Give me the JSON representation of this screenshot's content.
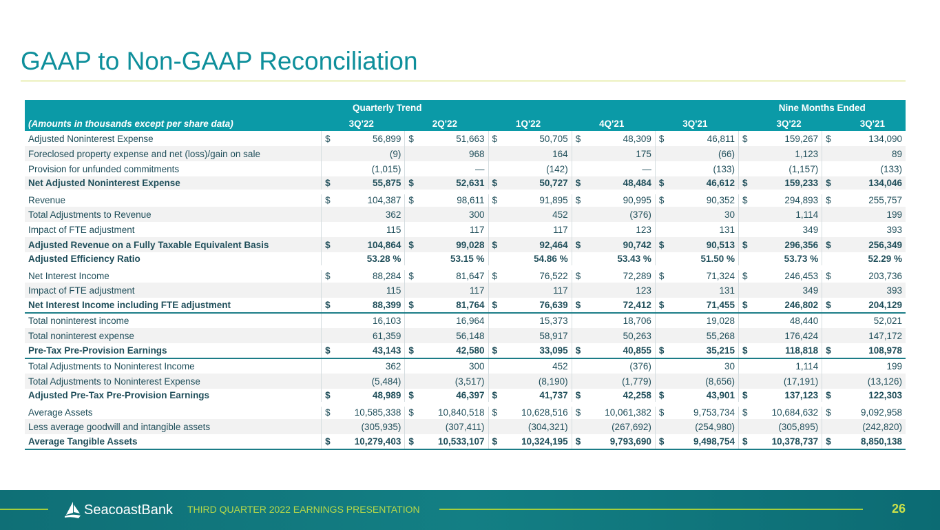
{
  "title": "GAAP to Non-GAAP Reconciliation",
  "table": {
    "group_quarterly": "Quarterly Trend",
    "group_nine": "Nine  Months Ended",
    "units_note": "(Amounts in thousands except per share data)",
    "columns": [
      "3Q'22",
      "2Q'22",
      "1Q'22",
      "4Q'21",
      "3Q'21",
      "3Q'22",
      "3Q'21"
    ],
    "rows": [
      {
        "label": "Adjusted Noninterest Expense",
        "dollar": true,
        "values": [
          "56,899",
          "51,663",
          "50,705",
          "48,309",
          "46,811",
          "159,267",
          "134,090"
        ]
      },
      {
        "label": "Foreclosed property expense and net (loss)/gain on sale",
        "shade": true,
        "values": [
          "(9)",
          "968",
          "164",
          "175",
          "(66)",
          "1,123",
          "89"
        ]
      },
      {
        "label": "Provision for unfunded commitments",
        "values": [
          "(1,015)",
          "—",
          "(142)",
          "—",
          "(133)",
          "(1,157)",
          "(133)"
        ]
      },
      {
        "label": "Net Adjusted Noninterest Expense",
        "bold": true,
        "shade": true,
        "bb": true,
        "dollar": true,
        "values": [
          "55,875",
          "52,631",
          "50,727",
          "48,484",
          "46,612",
          "159,233",
          "134,046"
        ]
      },
      {
        "label": "Revenue",
        "gap": true,
        "dollar": true,
        "values": [
          "104,387",
          "98,611",
          "91,895",
          "90,995",
          "90,352",
          "294,893",
          "255,757"
        ]
      },
      {
        "label": "Total Adjustments to Revenue",
        "shade": true,
        "values": [
          "362",
          "300",
          "452",
          "(376)",
          "30",
          "1,114",
          "199"
        ]
      },
      {
        "label": "Impact of FTE adjustment",
        "values": [
          "115",
          "117",
          "117",
          "123",
          "131",
          "349",
          "393"
        ]
      },
      {
        "label": "Adjusted Revenue on a Fully Taxable Equivalent Basis",
        "bold": true,
        "shade": true,
        "dollar": true,
        "values": [
          "104,864",
          "99,028",
          "92,464",
          "90,742",
          "90,513",
          "296,356",
          "256,349"
        ]
      },
      {
        "label": "Adjusted Efficiency Ratio",
        "bold": true,
        "bb": true,
        "values": [
          "53.28 %",
          "53.15 %",
          "54.86 %",
          "53.43 %",
          "51.50 %",
          "53.73 %",
          "52.29 %"
        ]
      },
      {
        "label": "Net Interest Income",
        "gap": true,
        "dollar": true,
        "values": [
          "88,284",
          "81,647",
          "76,522",
          "72,289",
          "71,324",
          "246,453",
          "203,736"
        ]
      },
      {
        "label": "Impact of FTE adjustment",
        "shade": true,
        "values": [
          "115",
          "117",
          "117",
          "123",
          "131",
          "349",
          "393"
        ]
      },
      {
        "label": "Net Interest Income including FTE adjustment",
        "bold": true,
        "indent": true,
        "bb": true,
        "dollar": true,
        "values": [
          "88,399",
          "81,764",
          "76,639",
          "72,412",
          "71,455",
          "246,802",
          "204,129"
        ]
      },
      {
        "label": "Total noninterest income",
        "values": [
          "16,103",
          "16,964",
          "15,373",
          "18,706",
          "19,028",
          "48,440",
          "52,021"
        ]
      },
      {
        "label": "Total noninterest expense",
        "shade": true,
        "values": [
          "61,359",
          "56,148",
          "58,917",
          "50,263",
          "55,268",
          "176,424",
          "147,172"
        ]
      },
      {
        "label": "Pre-Tax Pre-Provision Earnings",
        "bold": true,
        "indent": true,
        "bb": true,
        "dollar": true,
        "values": [
          "43,143",
          "42,580",
          "33,095",
          "40,855",
          "35,215",
          "118,818",
          "108,978"
        ]
      },
      {
        "label": "Total Adjustments to Noninterest Income",
        "values": [
          "362",
          "300",
          "452",
          "(376)",
          "30",
          "1,114",
          "199"
        ]
      },
      {
        "label": "Total Adjustments to Noninterest Expense",
        "shade": true,
        "values": [
          "(5,484)",
          "(3,517)",
          "(8,190)",
          "(1,779)",
          "(8,656)",
          "(17,191)",
          "(13,126)"
        ]
      },
      {
        "label": "Adjusted Pre-Tax Pre-Provision Earnings",
        "bold": true,
        "indent": true,
        "bb": true,
        "dollar": true,
        "values": [
          "48,989",
          "46,397",
          "41,737",
          "42,258",
          "43,901",
          "137,123",
          "122,303"
        ]
      },
      {
        "label": "Average Assets",
        "gap": true,
        "dollar": true,
        "values": [
          "10,585,338",
          "10,840,518",
          "10,628,516",
          "10,061,382",
          "9,753,734",
          "10,684,632",
          "9,092,958"
        ]
      },
      {
        "label": "Less average goodwill and intangible assets",
        "shade": true,
        "values": [
          "(305,935)",
          "(307,411)",
          "(304,321)",
          "(267,692)",
          "(254,980)",
          "(305,895)",
          "(242,820)"
        ]
      },
      {
        "label": "Average Tangible Assets",
        "bold": true,
        "bb": true,
        "dollar": true,
        "values": [
          "10,279,403",
          "10,533,107",
          "10,324,195",
          "9,793,690",
          "9,498,754",
          "10,378,737",
          "8,850,138"
        ]
      }
    ],
    "dollar_sign": "$"
  },
  "footer": {
    "brand": "SeacoastBank",
    "presentation": "THIRD QUARTER 2022 EARNINGS PRESENTATION",
    "page": "26"
  }
}
